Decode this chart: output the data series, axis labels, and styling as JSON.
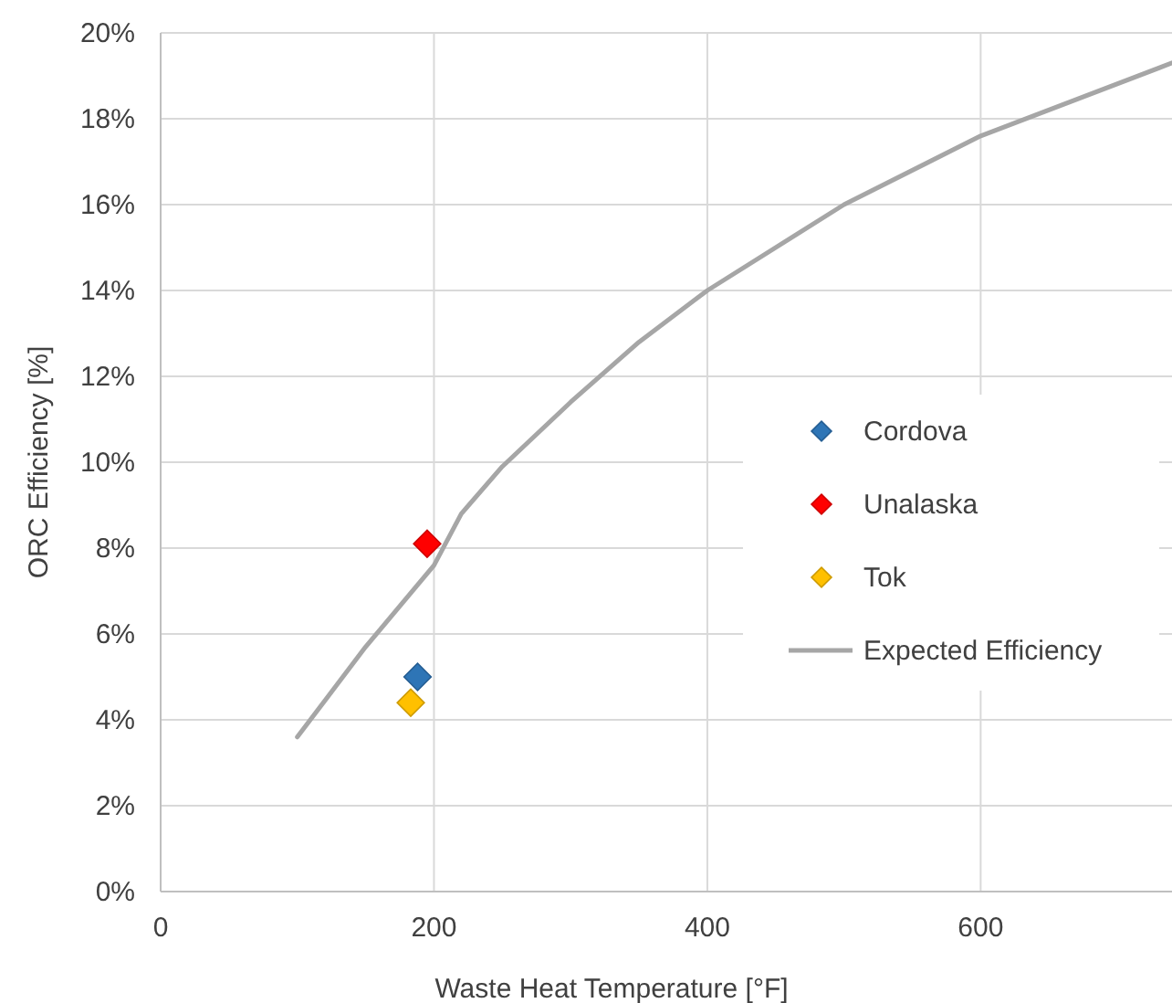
{
  "chart_data": {
    "type": "scatter",
    "xlabel": "Waste Heat Temperature [°F]",
    "ylabel": "ORC Efficiency [%]",
    "xlim": [
      0,
      740
    ],
    "xticks": [
      0,
      200,
      400,
      600
    ],
    "ylim": [
      0,
      20
    ],
    "yticks": [
      {
        "value": 0,
        "label": "0%"
      },
      {
        "value": 2,
        "label": "2%"
      },
      {
        "value": 4,
        "label": "4%"
      },
      {
        "value": 6,
        "label": "6%"
      },
      {
        "value": 8,
        "label": "8%"
      },
      {
        "value": 10,
        "label": "10%"
      },
      {
        "value": 12,
        "label": "12%"
      },
      {
        "value": 14,
        "label": "14%"
      },
      {
        "value": 16,
        "label": "16%"
      },
      {
        "value": 18,
        "label": "18%"
      },
      {
        "value": 20,
        "label": "20%"
      }
    ],
    "grid": true,
    "legend": "right",
    "marker": "diamond",
    "series": [
      {
        "name": "Cordova",
        "color": "#2e75b6",
        "x": [
          188
        ],
        "values": [
          5.0
        ]
      },
      {
        "name": "Unalaska",
        "color": "#ff0000",
        "x": [
          195
        ],
        "values": [
          8.1
        ]
      },
      {
        "name": "Tok",
        "color": "#ffc000",
        "x": [
          183
        ],
        "values": [
          4.4
        ]
      },
      {
        "name": "Expected Efficiency",
        "type": "line",
        "marker": "none",
        "color": "#a6a6a6",
        "x": [
          100,
          150,
          200,
          220,
          250,
          300,
          350,
          400,
          500,
          600,
          740
        ],
        "values": [
          3.6,
          5.7,
          7.6,
          8.8,
          9.9,
          11.4,
          12.8,
          14.0,
          16.0,
          17.6,
          19.3
        ]
      }
    ]
  }
}
